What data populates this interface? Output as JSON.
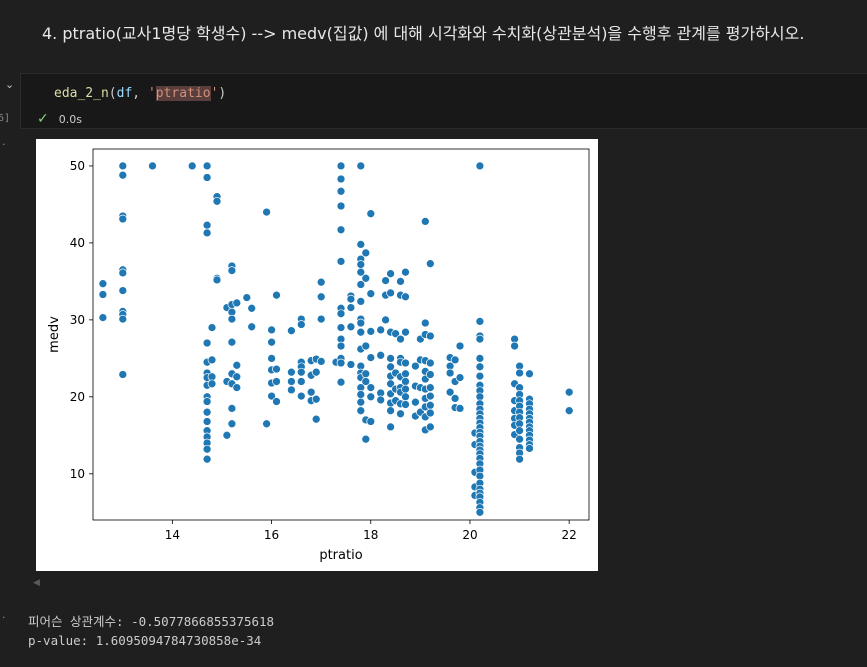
{
  "markdown": {
    "heading": "4. ptratio(교사1명당 학생수) --> medv(집값) 에 대해 시각화와 수치화(상관분석)을 수행후 관계를 평가하시오."
  },
  "cell": {
    "exec_count": "6]",
    "code": {
      "fn": "eda_2_n",
      "open": "(",
      "arg1": "df",
      "sep": ", ",
      "q1": "'",
      "arg2": "ptratio",
      "q2": "'",
      "close": ")"
    },
    "status_time": "0.0s"
  },
  "output": {
    "marker_plot": "·",
    "marker_text": "·",
    "stdout_line1": "피어슨 상관계수: -0.5077866855375618",
    "stdout_line2": "p-value: 1.6095094784730858e-34"
  },
  "chart_data": {
    "type": "scatter",
    "xlabel": "ptratio",
    "ylabel": "medv",
    "xlim": [
      12.4,
      22.4
    ],
    "ylim": [
      4.0,
      52.2
    ],
    "xticks": [
      14,
      16,
      18,
      20,
      22
    ],
    "yticks": [
      10,
      20,
      30,
      40,
      50
    ],
    "point_color": "#1f77b4",
    "grid": false,
    "points": [
      [
        12.6,
        34.7
      ],
      [
        12.6,
        33.3
      ],
      [
        12.6,
        30.3
      ],
      [
        13.0,
        50.0
      ],
      [
        13.0,
        48.8
      ],
      [
        13.0,
        43.5
      ],
      [
        13.0,
        43.1
      ],
      [
        13.0,
        36.5
      ],
      [
        13.0,
        36.1
      ],
      [
        13.0,
        33.8
      ],
      [
        13.0,
        31.1
      ],
      [
        13.0,
        30.7
      ],
      [
        13.0,
        30.1
      ],
      [
        13.0,
        22.9
      ],
      [
        13.6,
        50.0
      ],
      [
        14.4,
        50.0
      ],
      [
        14.7,
        50.0
      ],
      [
        14.7,
        48.5
      ],
      [
        14.7,
        42.3
      ],
      [
        14.7,
        41.3
      ],
      [
        14.7,
        27.0
      ],
      [
        14.7,
        24.5
      ],
      [
        14.7,
        23.1
      ],
      [
        14.7,
        22.5
      ],
      [
        14.7,
        21.5
      ],
      [
        14.7,
        20.0
      ],
      [
        14.7,
        19.4
      ],
      [
        14.7,
        18.0
      ],
      [
        14.7,
        16.8
      ],
      [
        14.7,
        15.6
      ],
      [
        14.7,
        14.8
      ],
      [
        14.7,
        14.0
      ],
      [
        14.7,
        13.2
      ],
      [
        14.7,
        11.9
      ],
      [
        14.8,
        29.0
      ],
      [
        14.8,
        24.8
      ],
      [
        14.8,
        22.6
      ],
      [
        14.8,
        21.7
      ],
      [
        14.9,
        46.0
      ],
      [
        14.9,
        45.4
      ],
      [
        14.9,
        35.4
      ],
      [
        14.9,
        35.2
      ],
      [
        15.1,
        31.6
      ],
      [
        15.1,
        22.0
      ],
      [
        15.2,
        37.0
      ],
      [
        15.2,
        36.4
      ],
      [
        15.2,
        32.0
      ],
      [
        15.2,
        31.0
      ],
      [
        15.2,
        30.1
      ],
      [
        15.2,
        27.1
      ],
      [
        15.2,
        23.0
      ],
      [
        15.2,
        21.7
      ],
      [
        15.2,
        18.5
      ],
      [
        15.2,
        16.5
      ],
      [
        15.1,
        15.0
      ],
      [
        15.3,
        32.2
      ],
      [
        15.3,
        24.1
      ],
      [
        15.3,
        22.6
      ],
      [
        15.3,
        21.2
      ],
      [
        15.5,
        32.9
      ],
      [
        15.6,
        31.5
      ],
      [
        15.6,
        29.1
      ],
      [
        15.9,
        44.0
      ],
      [
        15.9,
        16.5
      ],
      [
        16.0,
        28.7
      ],
      [
        16.0,
        27.1
      ],
      [
        16.0,
        25.0
      ],
      [
        16.0,
        23.5
      ],
      [
        16.0,
        21.8
      ],
      [
        16.0,
        20.1
      ],
      [
        16.1,
        33.2
      ],
      [
        16.1,
        23.6
      ],
      [
        16.1,
        22.0
      ],
      [
        16.1,
        19.4
      ],
      [
        16.4,
        28.6
      ],
      [
        16.4,
        23.2
      ],
      [
        16.4,
        22.0
      ],
      [
        16.4,
        20.9
      ],
      [
        16.6,
        30.1
      ],
      [
        16.6,
        29.4
      ],
      [
        16.6,
        24.5
      ],
      [
        16.6,
        23.9
      ],
      [
        16.6,
        23.2
      ],
      [
        16.6,
        22.0
      ],
      [
        16.6,
        20.1
      ],
      [
        16.8,
        24.7
      ],
      [
        16.8,
        22.8
      ],
      [
        16.8,
        20.6
      ],
      [
        16.8,
        19.5
      ],
      [
        16.9,
        24.9
      ],
      [
        16.9,
        23.2
      ],
      [
        16.9,
        19.7
      ],
      [
        16.9,
        17.1
      ],
      [
        17.0,
        34.9
      ],
      [
        17.0,
        33.0
      ],
      [
        17.0,
        30.1
      ],
      [
        17.0,
        24.6
      ],
      [
        17.3,
        24.5
      ],
      [
        17.4,
        50.0
      ],
      [
        17.4,
        48.3
      ],
      [
        17.4,
        46.7
      ],
      [
        17.4,
        44.8
      ],
      [
        17.4,
        41.7
      ],
      [
        17.4,
        37.6
      ],
      [
        17.4,
        31.5
      ],
      [
        17.4,
        30.8
      ],
      [
        17.4,
        29.0
      ],
      [
        17.4,
        27.5
      ],
      [
        17.4,
        26.6
      ],
      [
        17.4,
        25.0
      ],
      [
        17.4,
        24.4
      ],
      [
        17.4,
        21.9
      ],
      [
        17.6,
        33.1
      ],
      [
        17.6,
        32.7
      ],
      [
        17.6,
        31.6
      ],
      [
        17.6,
        29.1
      ],
      [
        17.6,
        24.2
      ],
      [
        17.8,
        50.0
      ],
      [
        17.8,
        39.8
      ],
      [
        17.8,
        37.9
      ],
      [
        17.8,
        37.2
      ],
      [
        17.8,
        36.2
      ],
      [
        17.8,
        34.6
      ],
      [
        17.8,
        32.4
      ],
      [
        17.8,
        30.1
      ],
      [
        17.8,
        29.6
      ],
      [
        17.8,
        28.4
      ],
      [
        17.8,
        26.2
      ],
      [
        17.8,
        24.0
      ],
      [
        17.8,
        23.1
      ],
      [
        17.8,
        22.5
      ],
      [
        17.8,
        21.2
      ],
      [
        17.8,
        20.3
      ],
      [
        17.8,
        19.3
      ],
      [
        17.8,
        18.2
      ],
      [
        17.9,
        38.7
      ],
      [
        17.9,
        35.4
      ],
      [
        17.9,
        26.6
      ],
      [
        17.9,
        23.0
      ],
      [
        17.9,
        22.0
      ],
      [
        17.9,
        17.0
      ],
      [
        17.9,
        14.5
      ],
      [
        18.0,
        43.8
      ],
      [
        18.0,
        33.4
      ],
      [
        18.0,
        28.5
      ],
      [
        18.0,
        25.1
      ],
      [
        18.0,
        21.2
      ],
      [
        18.0,
        20.0
      ],
      [
        18.0,
        16.8
      ],
      [
        18.2,
        28.7
      ],
      [
        18.2,
        25.4
      ],
      [
        18.2,
        20.5
      ],
      [
        18.2,
        19.6
      ],
      [
        18.3,
        35.1
      ],
      [
        18.3,
        33.2
      ],
      [
        18.3,
        30.0
      ],
      [
        18.4,
        36.0
      ],
      [
        18.4,
        33.5
      ],
      [
        18.4,
        28.4
      ],
      [
        18.4,
        25.0
      ],
      [
        18.4,
        23.9
      ],
      [
        18.4,
        22.7
      ],
      [
        18.4,
        21.7
      ],
      [
        18.4,
        20.4
      ],
      [
        18.4,
        19.2
      ],
      [
        18.4,
        18.2
      ],
      [
        18.4,
        16.1
      ],
      [
        18.5,
        28.2
      ],
      [
        18.5,
        23.1
      ],
      [
        18.5,
        21.0
      ],
      [
        18.5,
        19.5
      ],
      [
        18.6,
        35.0
      ],
      [
        18.6,
        33.2
      ],
      [
        18.6,
        27.5
      ],
      [
        18.6,
        25.0
      ],
      [
        18.6,
        24.5
      ],
      [
        18.6,
        22.6
      ],
      [
        18.6,
        21.2
      ],
      [
        18.6,
        20.6
      ],
      [
        18.6,
        19.1
      ],
      [
        18.6,
        17.8
      ],
      [
        18.7,
        36.2
      ],
      [
        18.7,
        33.0
      ],
      [
        18.7,
        28.4
      ],
      [
        18.7,
        24.4
      ],
      [
        18.7,
        23.0
      ],
      [
        18.7,
        22.0
      ],
      [
        18.7,
        21.0
      ],
      [
        18.7,
        20.0
      ],
      [
        18.7,
        19.0
      ],
      [
        18.9,
        24.0
      ],
      [
        18.9,
        21.4
      ],
      [
        18.9,
        19.3
      ],
      [
        18.9,
        17.5
      ],
      [
        19.0,
        27.5
      ],
      [
        19.0,
        24.8
      ],
      [
        19.0,
        21.2
      ],
      [
        19.0,
        18.0
      ],
      [
        19.1,
        42.8
      ],
      [
        19.1,
        29.6
      ],
      [
        19.1,
        28.1
      ],
      [
        19.1,
        24.7
      ],
      [
        19.1,
        23.3
      ],
      [
        19.1,
        22.3
      ],
      [
        19.1,
        21.0
      ],
      [
        19.1,
        19.8
      ],
      [
        19.1,
        18.7
      ],
      [
        19.1,
        17.4
      ],
      [
        19.1,
        15.7
      ],
      [
        19.2,
        37.3
      ],
      [
        19.2,
        27.9
      ],
      [
        19.2,
        24.4
      ],
      [
        19.2,
        22.9
      ],
      [
        19.2,
        21.2
      ],
      [
        19.2,
        20.1
      ],
      [
        19.2,
        18.9
      ],
      [
        19.2,
        17.9
      ],
      [
        19.2,
        16.1
      ],
      [
        19.6,
        25.1
      ],
      [
        19.6,
        24.0
      ],
      [
        19.6,
        23.1
      ],
      [
        19.6,
        20.6
      ],
      [
        19.7,
        24.8
      ],
      [
        19.7,
        22.0
      ],
      [
        19.7,
        19.8
      ],
      [
        19.7,
        18.6
      ],
      [
        19.8,
        26.6
      ],
      [
        19.8,
        22.5
      ],
      [
        19.8,
        18.5
      ],
      [
        20.1,
        15.3
      ],
      [
        20.1,
        13.8
      ],
      [
        20.1,
        10.2
      ],
      [
        20.1,
        8.3
      ],
      [
        20.1,
        7.2
      ],
      [
        20.2,
        50.0
      ],
      [
        20.2,
        29.8
      ],
      [
        20.2,
        27.9
      ],
      [
        20.2,
        27.5
      ],
      [
        20.2,
        25.0
      ],
      [
        20.2,
        23.9
      ],
      [
        20.2,
        22.7
      ],
      [
        20.2,
        21.5
      ],
      [
        20.2,
        20.8
      ],
      [
        20.2,
        20.0
      ],
      [
        20.2,
        19.1
      ],
      [
        20.2,
        18.4
      ],
      [
        20.2,
        17.8
      ],
      [
        20.2,
        17.2
      ],
      [
        20.2,
        16.6
      ],
      [
        20.2,
        16.0
      ],
      [
        20.2,
        15.4
      ],
      [
        20.2,
        14.9
      ],
      [
        20.2,
        14.2
      ],
      [
        20.2,
        13.6
      ],
      [
        20.2,
        13.1
      ],
      [
        20.2,
        12.6
      ],
      [
        20.2,
        12.0
      ],
      [
        20.2,
        11.3
      ],
      [
        20.2,
        10.5
      ],
      [
        20.2,
        9.7
      ],
      [
        20.2,
        8.8
      ],
      [
        20.2,
        8.0
      ],
      [
        20.2,
        7.5
      ],
      [
        20.2,
        7.0
      ],
      [
        20.2,
        6.3
      ],
      [
        20.2,
        5.6
      ],
      [
        20.2,
        5.0
      ],
      [
        20.9,
        27.5
      ],
      [
        20.9,
        26.6
      ],
      [
        20.9,
        21.7
      ],
      [
        20.9,
        19.5
      ],
      [
        20.9,
        18.2
      ],
      [
        20.9,
        17.2
      ],
      [
        20.9,
        16.3
      ],
      [
        20.9,
        15.1
      ],
      [
        21.0,
        24.0
      ],
      [
        21.0,
        23.1
      ],
      [
        21.0,
        21.2
      ],
      [
        21.0,
        20.3
      ],
      [
        21.0,
        19.5
      ],
      [
        21.0,
        18.8
      ],
      [
        21.0,
        18.0
      ],
      [
        21.0,
        17.3
      ],
      [
        21.0,
        16.5
      ],
      [
        21.0,
        15.6
      ],
      [
        21.0,
        14.5
      ],
      [
        21.0,
        13.4
      ],
      [
        21.0,
        12.7
      ],
      [
        21.0,
        11.9
      ],
      [
        21.2,
        23.0
      ],
      [
        21.2,
        19.7
      ],
      [
        21.2,
        19.1
      ],
      [
        21.2,
        18.4
      ],
      [
        21.2,
        17.8
      ],
      [
        21.2,
        17.2
      ],
      [
        21.2,
        16.7
      ],
      [
        21.2,
        16.1
      ],
      [
        21.2,
        15.6
      ],
      [
        21.2,
        15.0
      ],
      [
        21.2,
        14.4
      ],
      [
        21.2,
        13.8
      ],
      [
        21.2,
        13.3
      ],
      [
        22.0,
        20.6
      ],
      [
        22.0,
        18.2
      ]
    ]
  }
}
